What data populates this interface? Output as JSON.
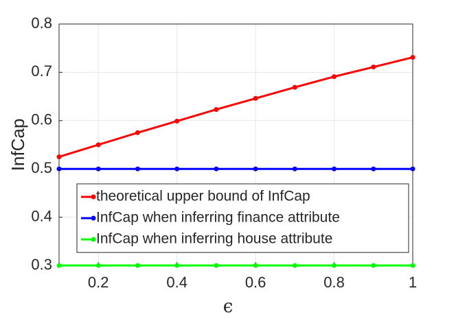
{
  "chart_data": {
    "type": "line",
    "x": [
      0.1,
      0.2,
      0.3,
      0.4,
      0.5,
      0.6,
      0.7,
      0.8,
      0.9,
      1
    ],
    "xlabel": "ϵ",
    "ylabel": "InfCap",
    "xlim": [
      0.1,
      1
    ],
    "xticks": [
      0.2,
      0.4,
      0.6,
      0.8,
      1
    ],
    "ylim": [
      0.3,
      0.8
    ],
    "yticks": [
      0.3,
      0.4,
      0.5,
      0.6,
      0.7,
      0.8
    ],
    "grid": true,
    "legend": "lower right",
    "series": [
      {
        "name": "theoretical upper bound of InfCap",
        "color": "#ff0000",
        "values": [
          0.525,
          0.55,
          0.575,
          0.599,
          0.623,
          0.646,
          0.669,
          0.691,
          0.711,
          0.731
        ]
      },
      {
        "name": "InfCap when inferring finance attribute",
        "color": "#0000ff",
        "values": [
          0.5,
          0.5,
          0.5,
          0.5,
          0.5,
          0.5,
          0.5,
          0.5,
          0.5,
          0.5
        ]
      },
      {
        "name": "InfCap when inferring house attribute",
        "color": "#00ff00",
        "values": [
          0.3,
          0.3,
          0.3,
          0.3,
          0.3,
          0.3,
          0.3,
          0.3,
          0.3,
          0.3
        ]
      }
    ]
  }
}
